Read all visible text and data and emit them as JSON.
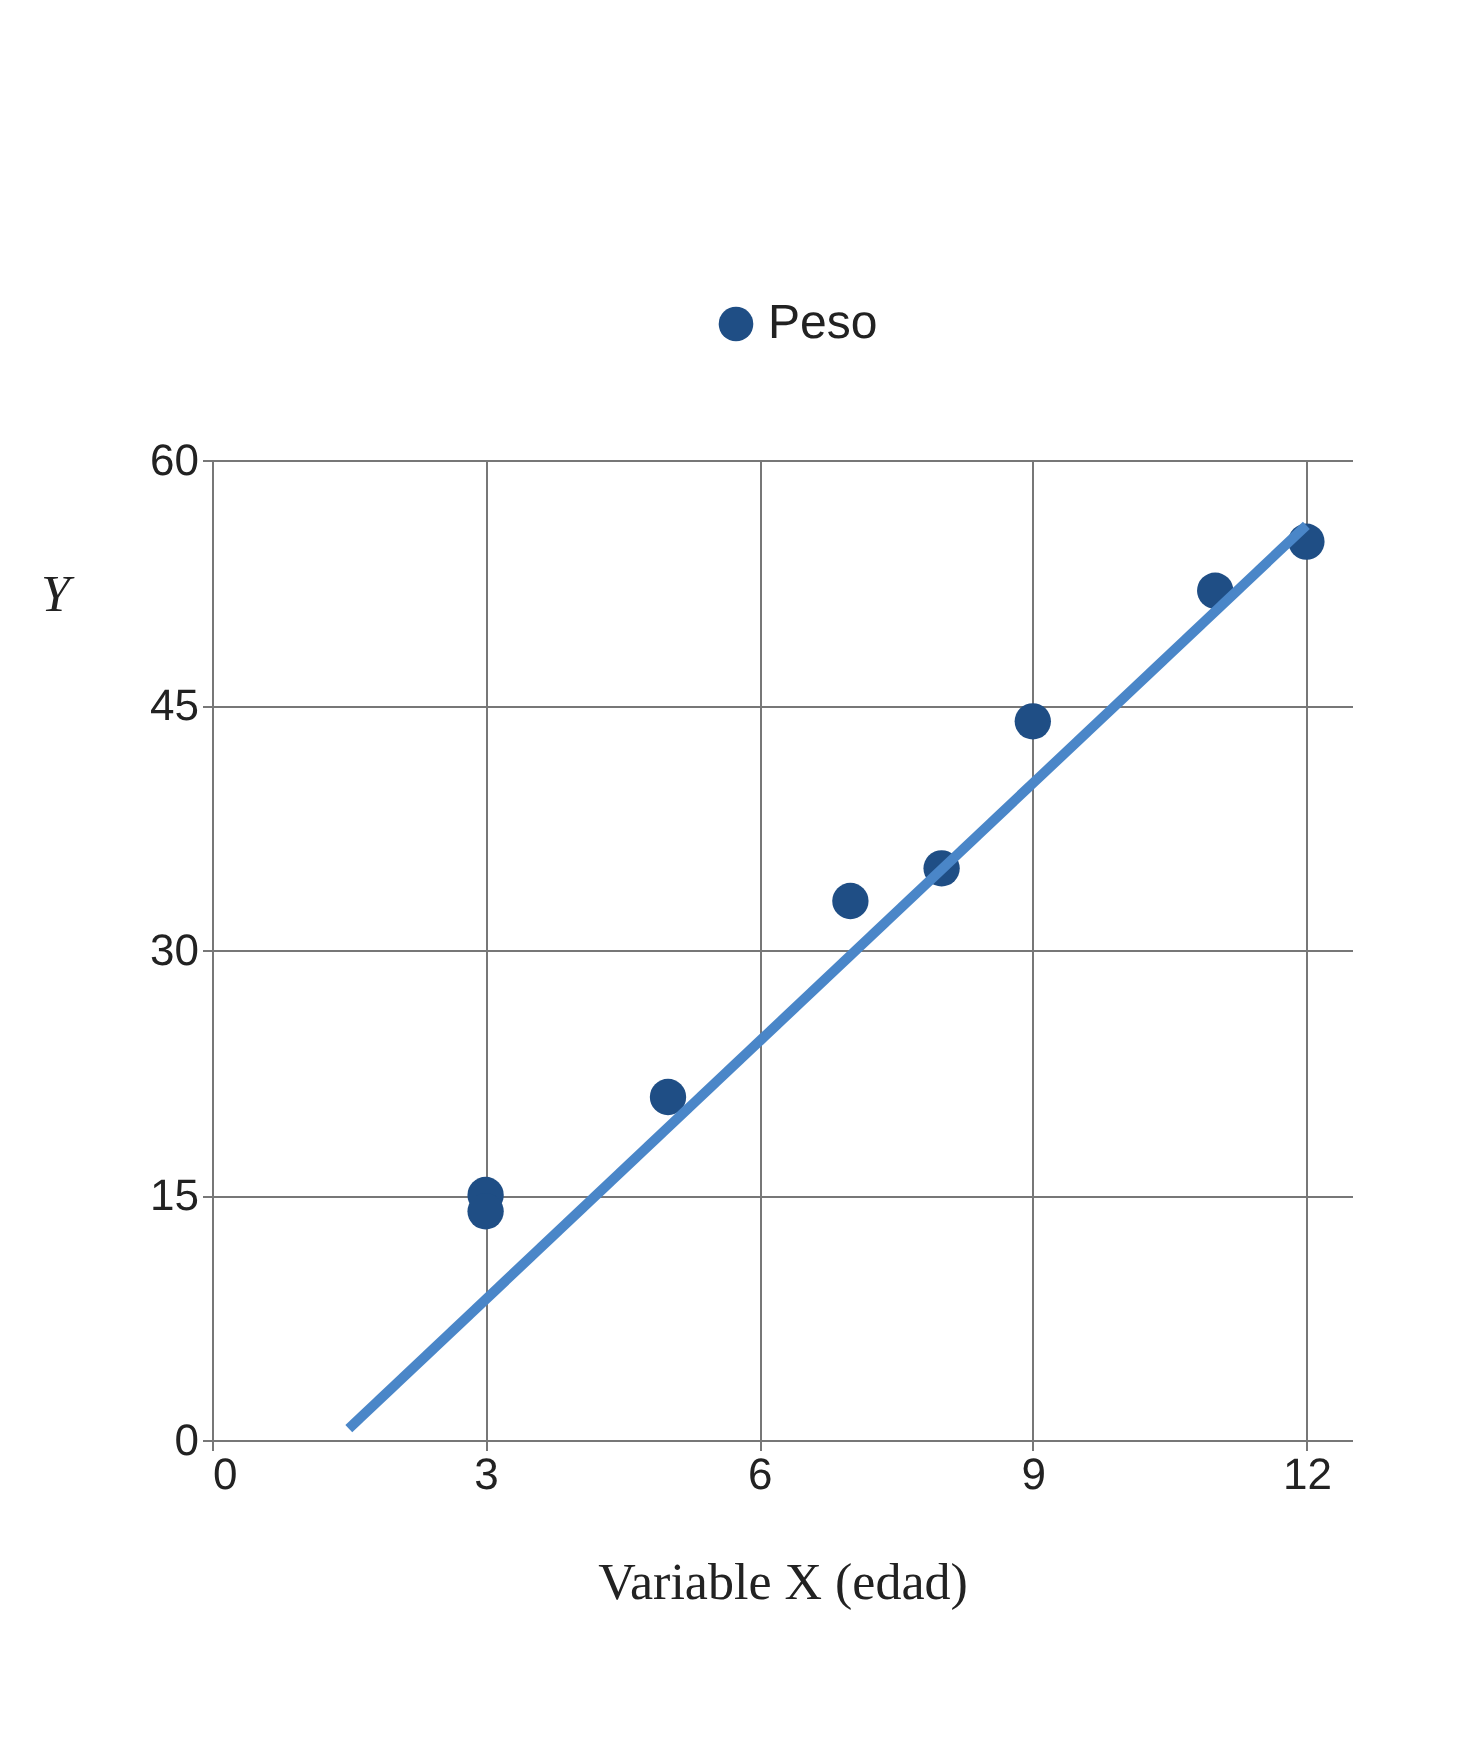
{
  "chart_data": {
    "type": "scatter",
    "xlabel": "Variable X (edad)",
    "ylabel": "Y",
    "series": [
      {
        "name": "Peso",
        "color": "#1f4e85",
        "marker": "circle",
        "x": [
          3,
          3,
          5,
          7,
          8,
          9,
          11,
          12
        ],
        "values": [
          15,
          14,
          21,
          33,
          35,
          44,
          52,
          55
        ]
      },
      {
        "type": "line",
        "color": "#4a86c8",
        "x": [
          1.5,
          12
        ],
        "values": [
          0.7,
          56
        ]
      }
    ],
    "xlim": [
      0,
      12.5
    ],
    "xticks": [
      0,
      3,
      6,
      9,
      12
    ],
    "ylim": [
      0,
      60
    ],
    "yticks": [
      0,
      15,
      30,
      45,
      60
    ],
    "grid": true,
    "legend": "top"
  }
}
